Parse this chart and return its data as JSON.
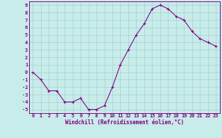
{
  "xlabel": "Windchill (Refroidissement éolien,°C)",
  "x_values": [
    0,
    1,
    2,
    3,
    4,
    5,
    6,
    7,
    8,
    9,
    10,
    11,
    12,
    13,
    14,
    15,
    16,
    17,
    18,
    19,
    20,
    21,
    22,
    23
  ],
  "y_values": [
    0,
    -1,
    -2.5,
    -2.5,
    -4,
    -4,
    -3.5,
    -5,
    -5,
    -4.5,
    -2,
    1,
    3,
    5,
    6.5,
    8.5,
    9,
    8.5,
    7.5,
    7,
    5.5,
    4.5,
    4,
    3.5
  ],
  "line_color": "#800080",
  "marker_color": "#800080",
  "bg_color": "#c8ecea",
  "grid_color": "#a0d0ce",
  "tick_color": "#800080",
  "ylim": [
    -5.5,
    9.5
  ],
  "xlim": [
    -0.5,
    23.5
  ],
  "yticks": [
    -5,
    -4,
    -3,
    -2,
    -1,
    0,
    1,
    2,
    3,
    4,
    5,
    6,
    7,
    8,
    9
  ],
  "xticks": [
    0,
    1,
    2,
    3,
    4,
    5,
    6,
    7,
    8,
    9,
    10,
    11,
    12,
    13,
    14,
    15,
    16,
    17,
    18,
    19,
    20,
    21,
    22,
    23
  ],
  "tick_fontsize": 5.0,
  "xlabel_fontsize": 5.5
}
